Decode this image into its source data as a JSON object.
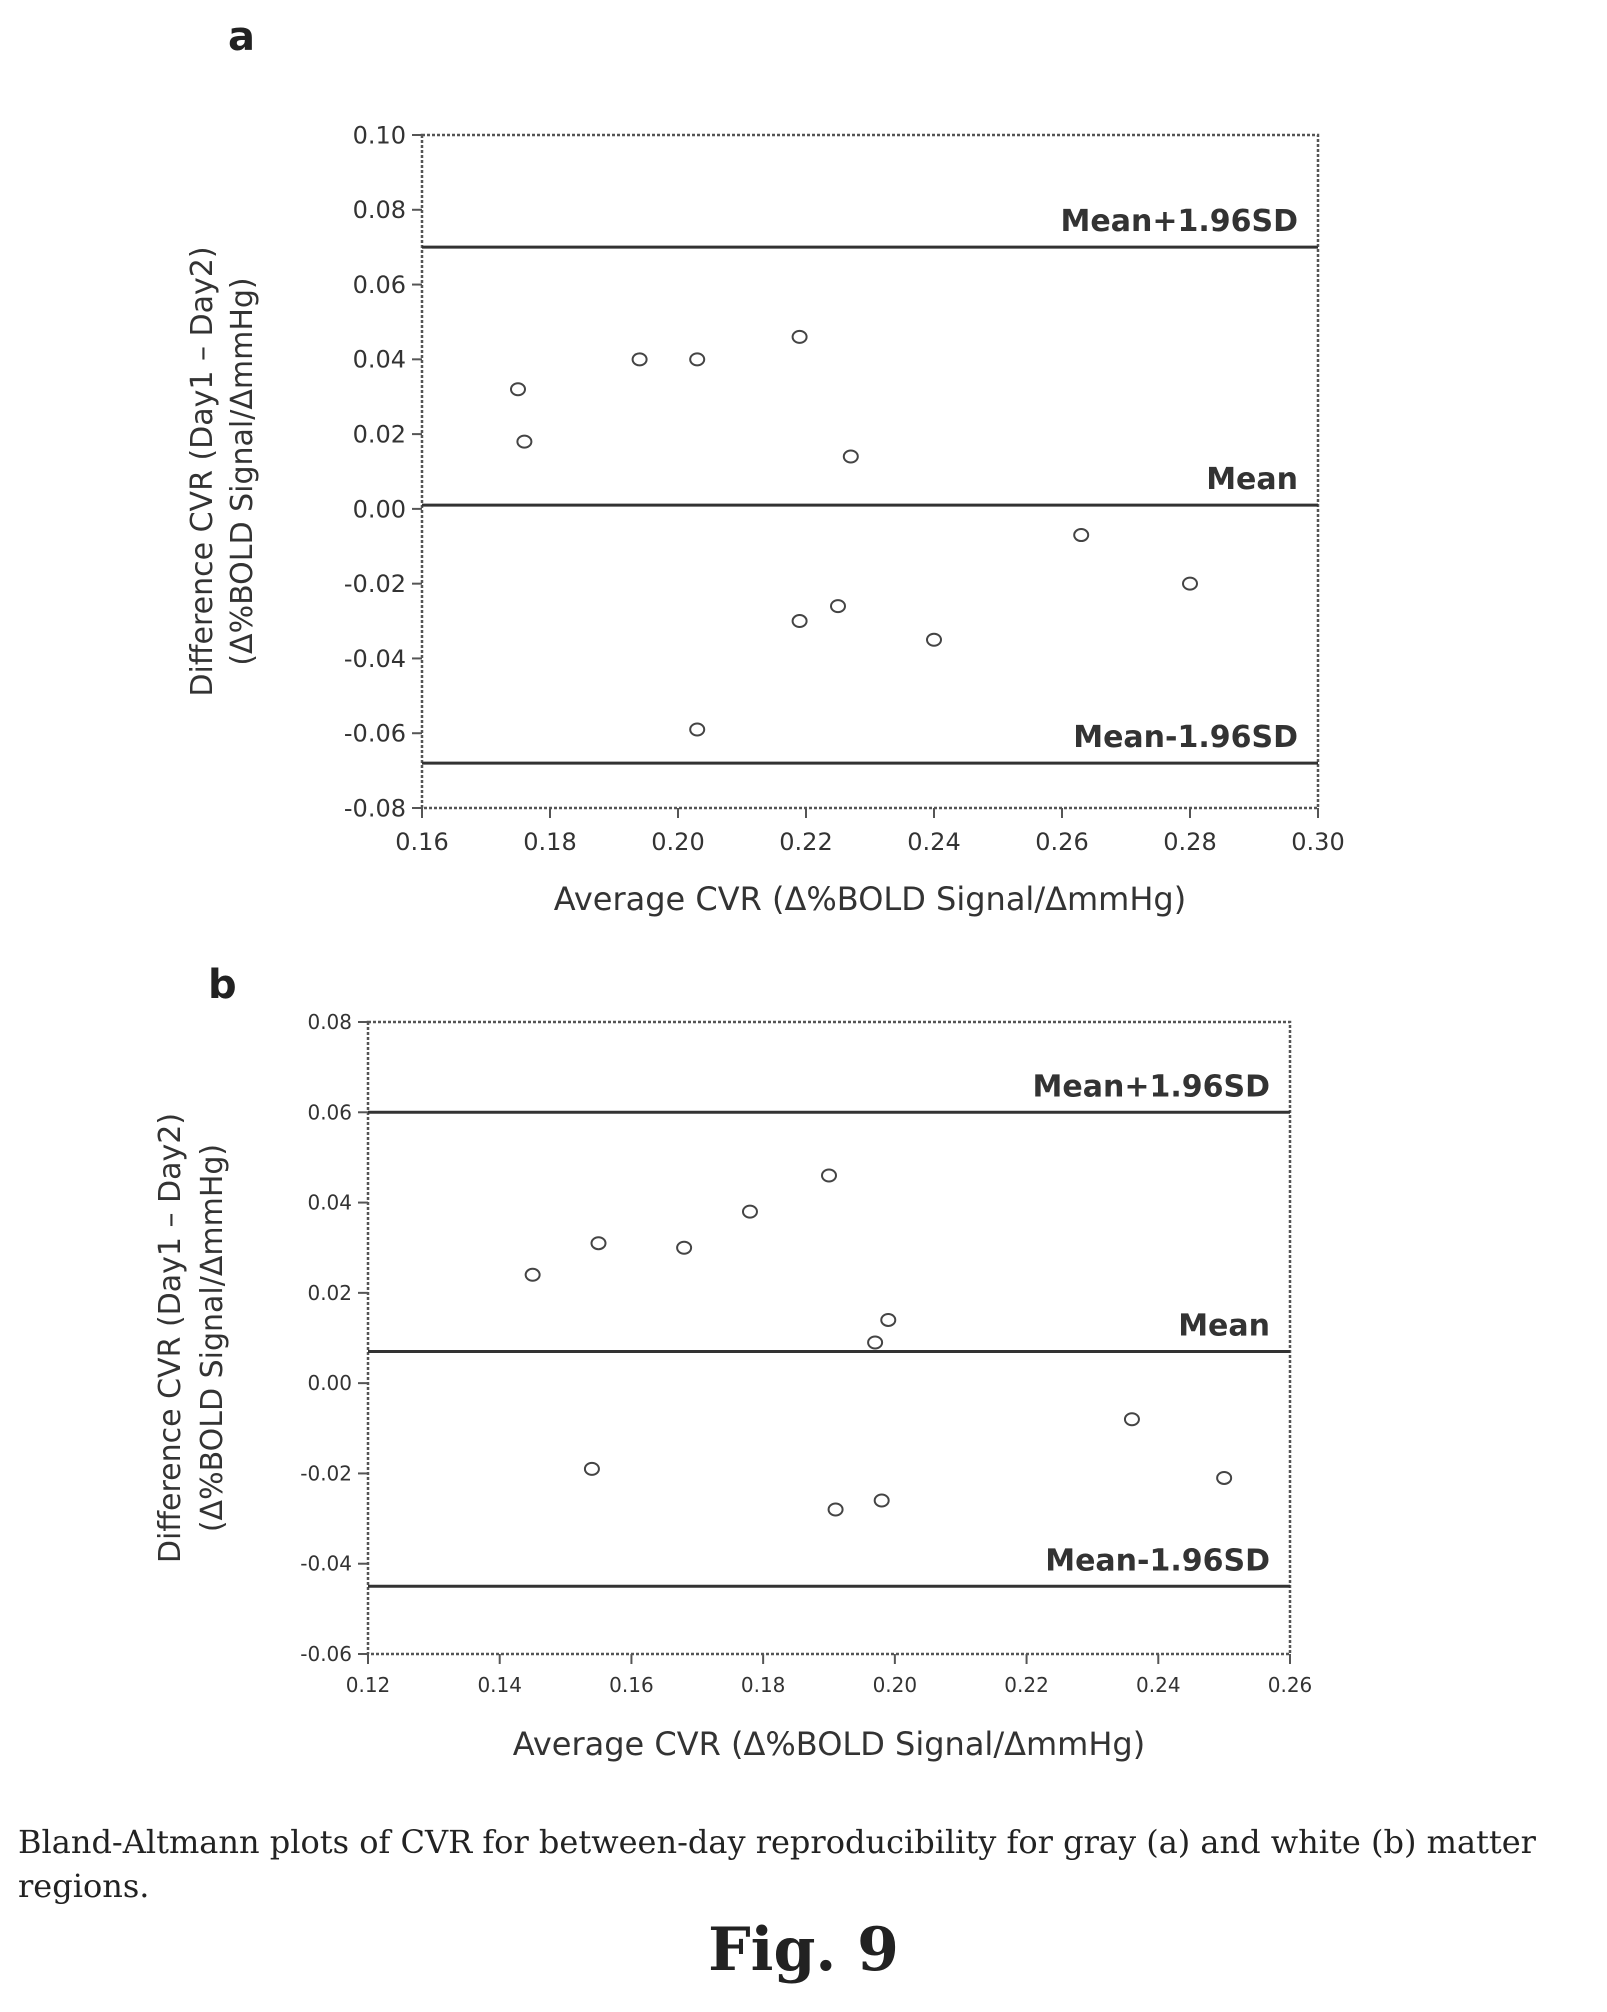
{
  "chart_data": [
    {
      "type": "scatter",
      "panel_label": "a",
      "xlabel": "Average CVR (Δ%BOLD Signal/ΔmmHg)",
      "ylabel_line1": "Difference CVR (Day1 – Day2)",
      "ylabel_line2": "(Δ%BOLD Signal/ΔmmHg)",
      "xlim": [
        0.16,
        0.3
      ],
      "ylim": [
        -0.08,
        0.1
      ],
      "xticks": [
        "0.16",
        "0.18",
        "0.20",
        "0.22",
        "0.24",
        "0.26",
        "0.28",
        "0.30"
      ],
      "yticks": [
        "0.10",
        "0.08",
        "0.06",
        "0.04",
        "0.02",
        "0.00",
        "-0.02",
        "-0.04",
        "-0.06",
        "-0.08"
      ],
      "lines": [
        {
          "label": "Mean+1.96SD",
          "y": 0.07
        },
        {
          "label": "Mean",
          "y": 0.001
        },
        {
          "label": "Mean-1.96SD",
          "y": -0.068
        }
      ],
      "points": [
        {
          "x": 0.175,
          "y": 0.032
        },
        {
          "x": 0.176,
          "y": 0.018
        },
        {
          "x": 0.194,
          "y": 0.04
        },
        {
          "x": 0.203,
          "y": 0.04
        },
        {
          "x": 0.219,
          "y": 0.046
        },
        {
          "x": 0.227,
          "y": 0.014
        },
        {
          "x": 0.203,
          "y": -0.059
        },
        {
          "x": 0.219,
          "y": -0.03
        },
        {
          "x": 0.225,
          "y": -0.026
        },
        {
          "x": 0.24,
          "y": -0.035
        },
        {
          "x": 0.263,
          "y": -0.007
        },
        {
          "x": 0.28,
          "y": -0.02
        }
      ]
    },
    {
      "type": "scatter",
      "panel_label": "b",
      "xlabel": "Average CVR (Δ%BOLD Signal/ΔmmHg)",
      "ylabel_line1": "Difference CVR (Day1 – Day2)",
      "ylabel_line2": "(Δ%BOLD Signal/ΔmmHg)",
      "xlim": [
        0.12,
        0.26
      ],
      "ylim": [
        -0.06,
        0.08
      ],
      "xticks": [
        "0.12",
        "0.14",
        "0.16",
        "0.18",
        "0.20",
        "0.22",
        "0.24",
        "0.26"
      ],
      "yticks": [
        "0.08",
        "0.06",
        "0.04",
        "0.02",
        "0.00",
        "-0.02",
        "-0.04",
        "-0.06"
      ],
      "lines": [
        {
          "label": "Mean+1.96SD",
          "y": 0.06
        },
        {
          "label": "Mean",
          "y": 0.007
        },
        {
          "label": "Mean-1.96SD",
          "y": -0.045
        }
      ],
      "points": [
        {
          "x": 0.145,
          "y": 0.024
        },
        {
          "x": 0.155,
          "y": 0.031
        },
        {
          "x": 0.168,
          "y": 0.03
        },
        {
          "x": 0.178,
          "y": 0.038
        },
        {
          "x": 0.19,
          "y": 0.046
        },
        {
          "x": 0.199,
          "y": 0.014
        },
        {
          "x": 0.197,
          "y": 0.009
        },
        {
          "x": 0.154,
          "y": -0.019
        },
        {
          "x": 0.191,
          "y": -0.028
        },
        {
          "x": 0.198,
          "y": -0.026
        },
        {
          "x": 0.236,
          "y": -0.008
        },
        {
          "x": 0.25,
          "y": -0.021
        }
      ]
    }
  ],
  "caption": "Bland-Altmann plots of CVR for between-day reproducibility for gray (a) and white (b) matter regions.",
  "figure_label": "Fig. 9"
}
